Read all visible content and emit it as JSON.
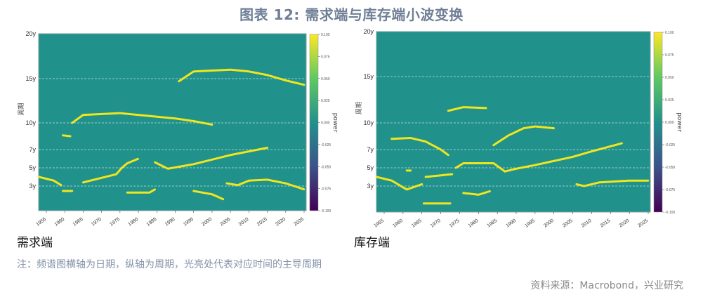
{
  "title": "图表 12: 需求端与库存端小波变换",
  "note": "注：频谱图横轴为日期，纵轴为周期，光亮处代表对应时间的主导周期",
  "source": "资料来源：Macrobond，兴业研究",
  "colors": {
    "background": "#21918c",
    "ridge": "#f0e61e",
    "grid": "#d8f0ee",
    "title": "#6f7f96"
  },
  "chart_data": [
    {
      "type": "heatmap",
      "title": "需求端",
      "xlabel": "",
      "ylabel": "周期",
      "x_ticks": [
        "1955",
        "1960",
        "1965",
        "1970",
        "1975",
        "1980",
        "1985",
        "1990",
        "1995",
        "2000",
        "2005",
        "2010",
        "2015",
        "2020",
        "2025"
      ],
      "y_ticks": [
        "3y",
        "5y",
        "7y",
        "10y",
        "15y",
        "20y"
      ],
      "xlim": [
        1953,
        2026
      ],
      "ylim": [
        1.5,
        20
      ],
      "colorbar": {
        "label": "power",
        "ticks": [
          "0.100",
          "0.075",
          "0.050",
          "0.025",
          "0.000",
          "-0.025",
          "-0.050",
          "-0.075",
          "-0.100"
        ]
      },
      "ridges": [
        {
          "name": "~4y declining to ~2.7y",
          "points": [
            [
              1953,
              4.0
            ],
            [
              1957,
              3.6
            ],
            [
              1959,
              3.1
            ]
          ]
        },
        {
          "name": "~2.7y short",
          "points": [
            [
              1959.5,
              2.7
            ],
            [
              1962,
              2.7
            ]
          ]
        },
        {
          "name": "~8.5y early",
          "points": [
            [
              1959.5,
              8.6
            ],
            [
              1961.5,
              8.5
            ]
          ]
        },
        {
          "name": "~10.5y ridge",
          "points": [
            [
              1962,
              10.0
            ],
            [
              1965,
              10.9
            ],
            [
              1970,
              11.0
            ],
            [
              1975,
              11.1
            ],
            [
              1980,
              10.9
            ],
            [
              1985,
              10.7
            ],
            [
              1990,
              10.5
            ],
            [
              1995,
              10.2
            ],
            [
              2000,
              9.8
            ]
          ]
        },
        {
          "name": "rising 3.5y→6y",
          "points": [
            [
              1965,
              3.4
            ],
            [
              1970,
              3.9
            ],
            [
              1974,
              4.3
            ],
            [
              1975.5,
              5.0
            ],
            [
              1977,
              5.5
            ],
            [
              1980,
              6.0
            ]
          ]
        },
        {
          "name": "~2.6y 1977-1984",
          "points": [
            [
              1977,
              2.6
            ],
            [
              1983,
              2.6
            ],
            [
              1984.5,
              2.8
            ]
          ]
        },
        {
          "name": "rising 5.5y→7.2y",
          "points": [
            [
              1984.5,
              5.6
            ],
            [
              1988,
              4.9
            ],
            [
              1995,
              5.4
            ],
            [
              2005,
              6.4
            ],
            [
              2015,
              7.2
            ]
          ]
        },
        {
          "name": "~2.7y→2.2y 1995-2003",
          "points": [
            [
              1995,
              2.7
            ],
            [
              2000,
              2.5
            ],
            [
              2003,
              2.2
            ]
          ]
        },
        {
          "name": "~3.5y 2004-2025",
          "points": [
            [
              2004,
              3.3
            ],
            [
              2007,
              3.1
            ],
            [
              2010,
              3.6
            ],
            [
              2015,
              3.7
            ],
            [
              2020,
              3.3
            ],
            [
              2025,
              2.8
            ]
          ]
        },
        {
          "name": "~15.5y ridge",
          "points": [
            [
              1991,
              14.7
            ],
            [
              1995,
              15.8
            ],
            [
              2005,
              16.0
            ],
            [
              2010,
              15.8
            ],
            [
              2015,
              15.4
            ],
            [
              2020,
              14.8
            ],
            [
              2025,
              14.3
            ]
          ]
        }
      ]
    },
    {
      "type": "heatmap",
      "title": "库存端",
      "xlabel": "",
      "ylabel": "周期",
      "x_ticks": [
        "1955",
        "1960",
        "1965",
        "1970",
        "1975",
        "1980",
        "1985",
        "1990",
        "1995",
        "2000",
        "2005",
        "2010",
        "2015",
        "2020",
        "2025"
      ],
      "y_ticks": [
        "3y",
        "5y",
        "7y",
        "10y",
        "15y",
        "20y"
      ],
      "xlim": [
        1953,
        2026
      ],
      "ylim": [
        1.5,
        20
      ],
      "colorbar": {
        "label": "power",
        "ticks": [
          "0.100",
          "0.075",
          "0.050",
          "0.025",
          "0.000",
          "-0.025",
          "-0.050",
          "-0.075",
          "-0.100"
        ]
      },
      "ridges": [
        {
          "name": "~4y declining",
          "points": [
            [
              1953,
              4.0
            ],
            [
              1957,
              3.6
            ],
            [
              1961,
              2.8
            ],
            [
              1965,
              3.2
            ]
          ]
        },
        {
          "name": "~8y 1957-1972",
          "points": [
            [
              1957,
              8.2
            ],
            [
              1962,
              8.3
            ],
            [
              1966,
              7.9
            ],
            [
              1970,
              7.0
            ],
            [
              1972,
              6.4
            ]
          ]
        },
        {
          "name": "~4.7y short",
          "points": [
            [
              1961,
              4.7
            ],
            [
              1962,
              4.7
            ]
          ]
        },
        {
          "name": "~2y 1965-1972",
          "points": [
            [
              1965.5,
              2.0
            ],
            [
              1972.5,
              2.0
            ]
          ]
        },
        {
          "name": "~4.2y 1966-1973",
          "points": [
            [
              1966,
              4.0
            ],
            [
              1973,
              4.3
            ]
          ]
        },
        {
          "name": "~11.5y 1972-1982",
          "points": [
            [
              1972,
              11.3
            ],
            [
              1976,
              11.7
            ],
            [
              1982,
              11.6
            ]
          ]
        },
        {
          "name": "~5.5y 1974-1984",
          "points": [
            [
              1974,
              5.0
            ],
            [
              1976,
              5.5
            ],
            [
              1984,
              5.5
            ],
            [
              1987,
              4.6
            ],
            [
              1990,
              4.9
            ],
            [
              1995,
              5.3
            ],
            [
              2005,
              6.2
            ],
            [
              2010,
              6.8
            ],
            [
              2018,
              7.7
            ]
          ]
        },
        {
          "name": "~2.6y 1976-1983",
          "points": [
            [
              1976,
              2.6
            ],
            [
              1980,
              2.5
            ],
            [
              1983,
              2.7
            ]
          ]
        },
        {
          "name": "~9y 1984-2000",
          "points": [
            [
              1984,
              7.5
            ],
            [
              1988,
              8.6
            ],
            [
              1992,
              9.4
            ],
            [
              1995,
              9.6
            ],
            [
              2000,
              9.4
            ]
          ]
        },
        {
          "name": "~3.5y 2006-2025",
          "points": [
            [
              2006,
              3.2
            ],
            [
              2008,
              3.0
            ],
            [
              2012,
              3.4
            ],
            [
              2020,
              3.6
            ],
            [
              2025,
              3.6
            ]
          ]
        }
      ]
    }
  ],
  "subtitles": {
    "left": "需求端",
    "right": "库存端"
  }
}
